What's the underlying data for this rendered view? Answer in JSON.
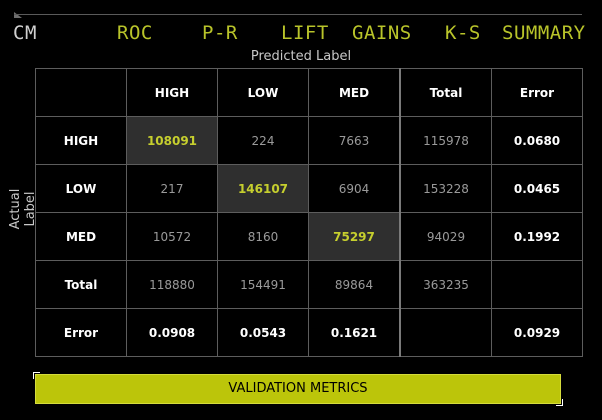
{
  "tabs": [
    {
      "label": "CM",
      "active": true
    },
    {
      "label": "ROC",
      "active": false
    },
    {
      "label": "P-R",
      "active": false
    },
    {
      "label": "LIFT",
      "active": false
    },
    {
      "label": "GAINS",
      "active": false
    },
    {
      "label": "K-S",
      "active": false
    },
    {
      "label": "SUMMARY",
      "active": false
    }
  ],
  "axis": {
    "predicted": "Predicted Label",
    "actual": "Actual Label"
  },
  "matrix": {
    "headers": [
      "",
      "HIGH",
      "LOW",
      "MED",
      "Total",
      "Error"
    ],
    "rows": [
      [
        "HIGH",
        "108091",
        "224",
        "7663",
        "115978",
        "0.0680"
      ],
      [
        "LOW",
        "217",
        "146107",
        "6904",
        "153228",
        "0.0465"
      ],
      [
        "MED",
        "10572",
        "8160",
        "75297",
        "94029",
        "0.1992"
      ],
      [
        "Total",
        "118880",
        "154491",
        "89864",
        "363235",
        ""
      ],
      [
        "Error",
        "0.0908",
        "0.0543",
        "0.1621",
        "",
        "0.0929"
      ]
    ]
  },
  "footer": {
    "button_label": "VALIDATION METRICS"
  },
  "colors": {
    "accent": "#bcc50a",
    "diag_bg": "#2f2f2f",
    "grid": "#5d5d5d"
  }
}
